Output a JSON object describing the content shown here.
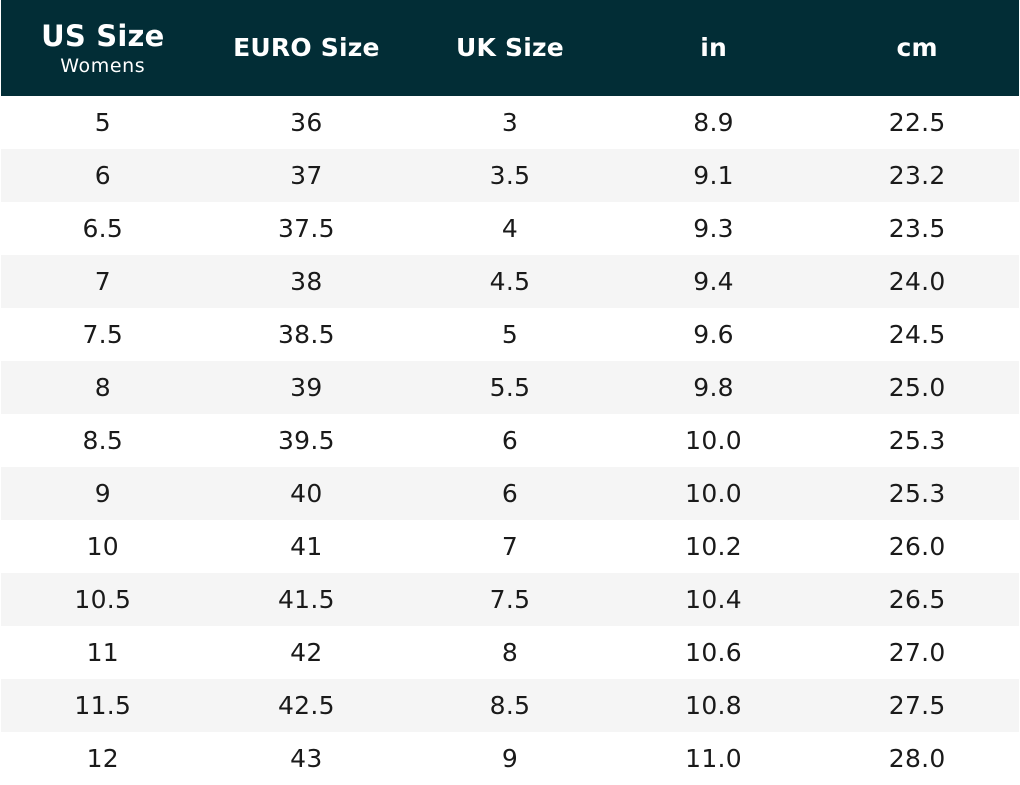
{
  "table": {
    "columns": [
      {
        "label": "US Size",
        "sublabel": "Womens"
      },
      {
        "label": "EURO Size",
        "sublabel": ""
      },
      {
        "label": "UK Size",
        "sublabel": ""
      },
      {
        "label": "in",
        "sublabel": ""
      },
      {
        "label": "cm",
        "sublabel": ""
      }
    ],
    "rows": [
      [
        "5",
        "36",
        "3",
        "8.9",
        "22.5"
      ],
      [
        "6",
        "37",
        "3.5",
        "9.1",
        "23.2"
      ],
      [
        "6.5",
        "37.5",
        "4",
        "9.3",
        "23.5"
      ],
      [
        "7",
        "38",
        "4.5",
        "9.4",
        "24.0"
      ],
      [
        "7.5",
        "38.5",
        "5",
        "9.6",
        "24.5"
      ],
      [
        "8",
        "39",
        "5.5",
        "9.8",
        "25.0"
      ],
      [
        "8.5",
        "39.5",
        "6",
        "10.0",
        "25.3"
      ],
      [
        "9",
        "40",
        "6",
        "10.0",
        "25.3"
      ],
      [
        "10",
        "41",
        "7",
        "10.2",
        "26.0"
      ],
      [
        "10.5",
        "41.5",
        "7.5",
        "10.4",
        "26.5"
      ],
      [
        "11",
        "42",
        "8",
        "10.6",
        "27.0"
      ],
      [
        "11.5",
        "42.5",
        "8.5",
        "10.8",
        "27.5"
      ],
      [
        "12",
        "43",
        "9",
        "11.0",
        "28.0"
      ]
    ]
  },
  "colors": {
    "header_background": "#022d36",
    "header_text": "#ffffff",
    "row_alt_background": "#f5f5f5",
    "cell_text": "#1a1a1a"
  }
}
